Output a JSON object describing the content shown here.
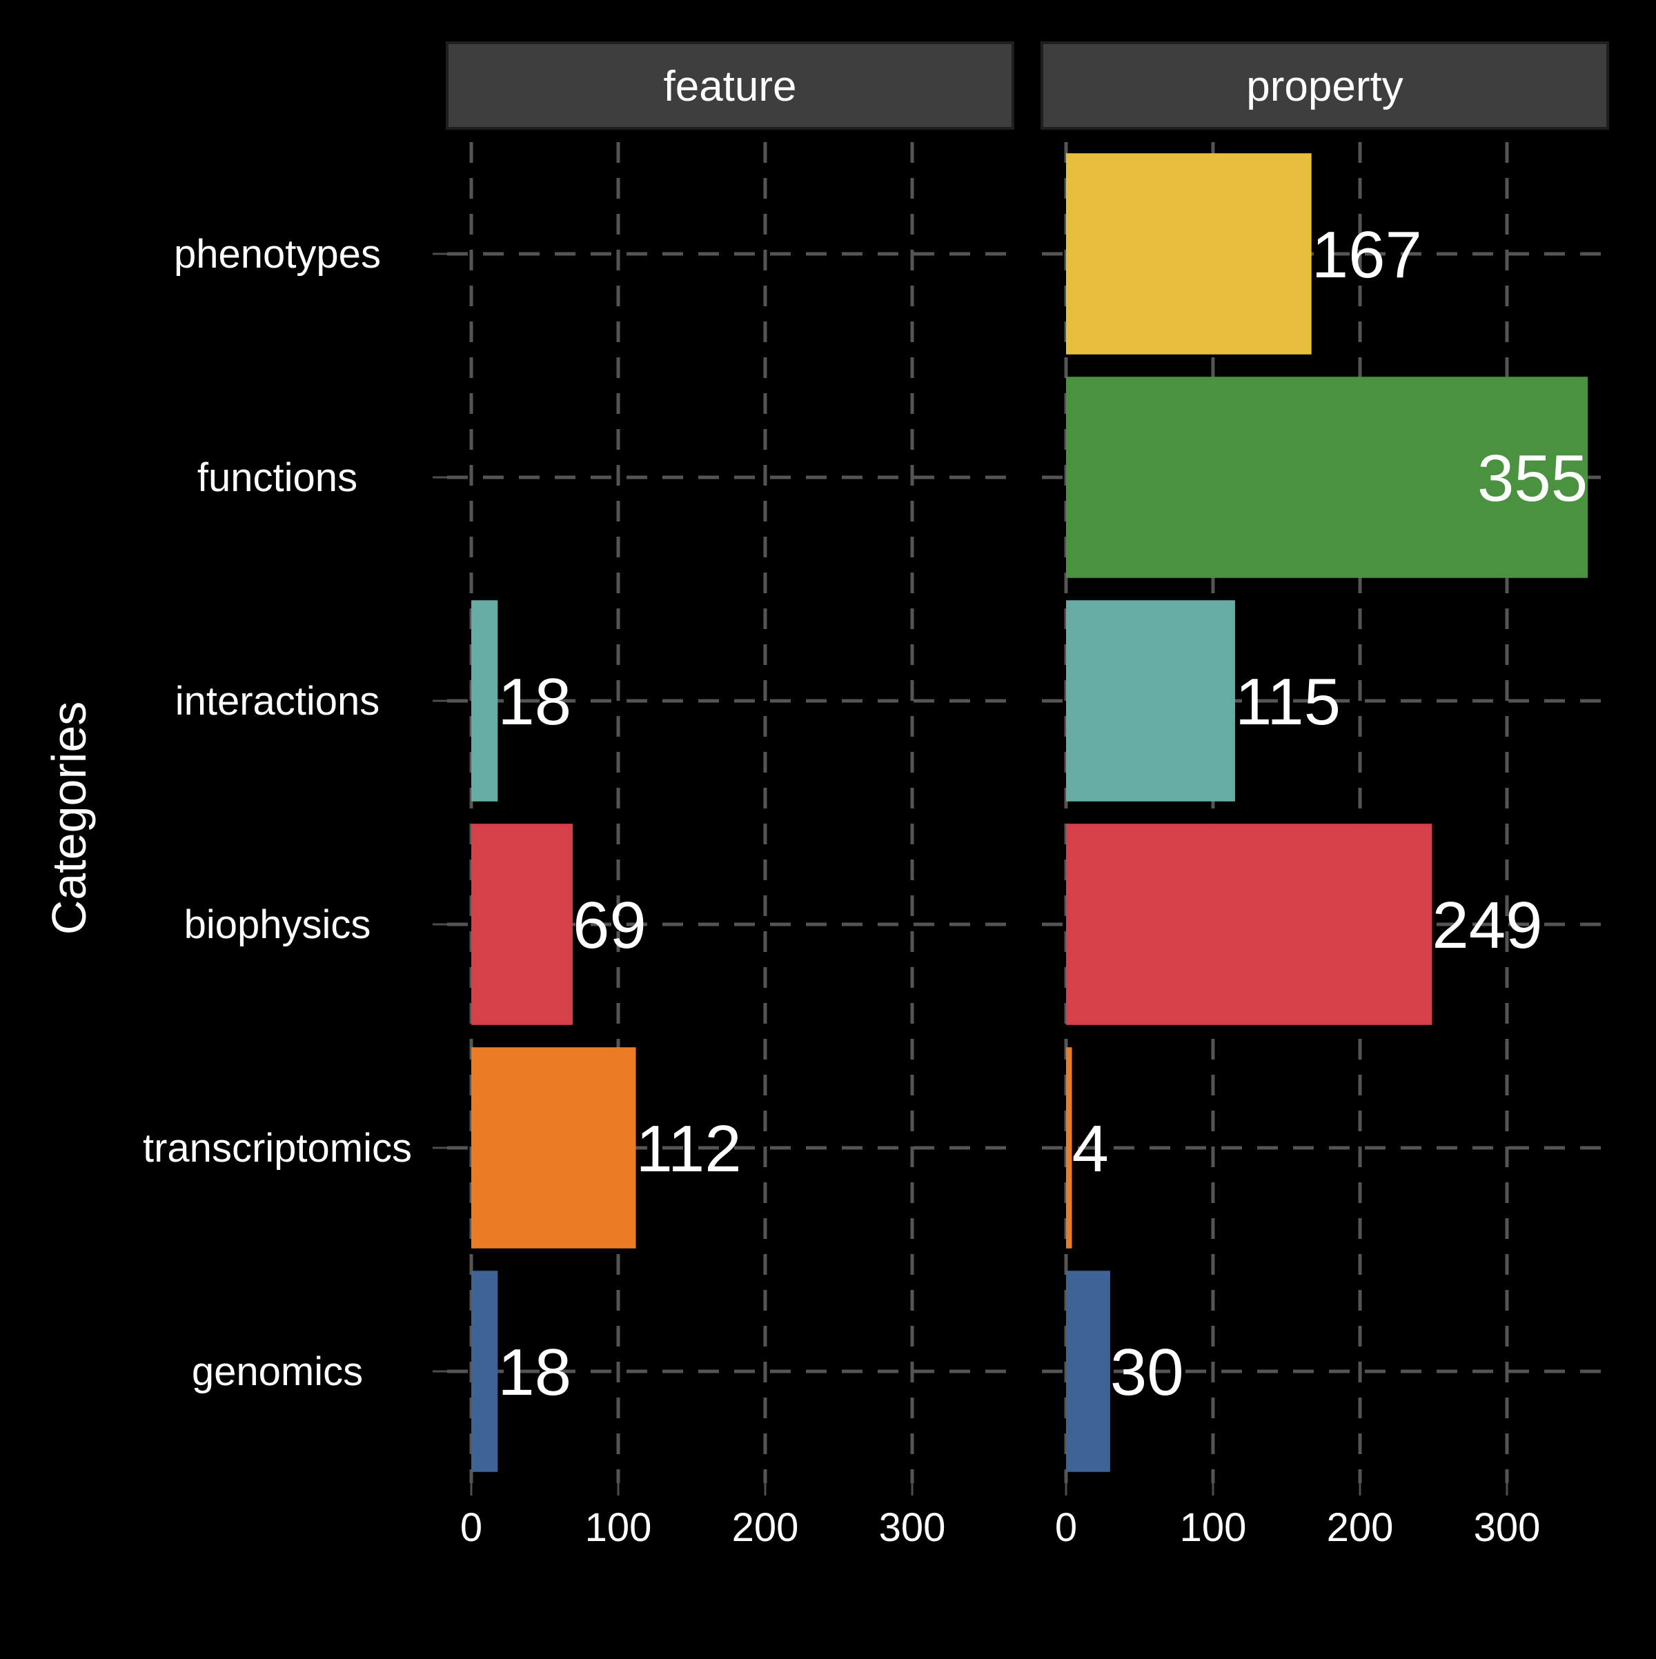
{
  "chart_data": {
    "type": "bar",
    "orientation": "horizontal",
    "ylabel": "Categories",
    "xlabel": "",
    "categories": [
      "phenotypes",
      "functions",
      "interactions",
      "biophysics",
      "transcriptomics",
      "genomics"
    ],
    "category_colors": {
      "phenotypes": "#E8BF3C",
      "functions": "#4A9240",
      "interactions": "#67ACA4",
      "biophysics": "#D6404A",
      "transcriptomics": "#EB7B24",
      "genomics": "#3F6395"
    },
    "xlim": [
      0,
      355
    ],
    "xticks": [
      0,
      100,
      200,
      300
    ],
    "xtick_labels": [
      "0",
      "100",
      "200",
      "300"
    ],
    "grid": "dashed",
    "legend": "none",
    "facets": [
      {
        "strip": "feature",
        "values": [
          null,
          null,
          18,
          69,
          112,
          18
        ],
        "value_labels": [
          "",
          "",
          "18",
          "69",
          "112",
          "18"
        ]
      },
      {
        "strip": "property",
        "values": [
          167,
          355,
          115,
          249,
          4,
          30
        ],
        "value_labels": [
          "167",
          "355",
          "115",
          "249",
          "4",
          "30"
        ]
      }
    ]
  }
}
